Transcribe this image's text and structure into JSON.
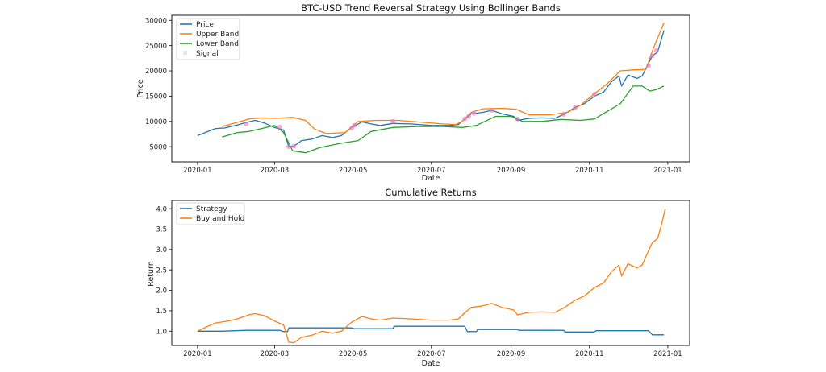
{
  "chart_data": [
    {
      "type": "line",
      "title": "BTC-USD Trend Reversal Strategy Using Bollinger Bands",
      "xlabel": "Date",
      "ylabel": "Price",
      "xlim": [
        "2019-12-12",
        "2021-01-18"
      ],
      "ylim": [
        2000,
        31000
      ],
      "yticks": [
        5000,
        10000,
        15000,
        20000,
        25000,
        30000
      ],
      "xticks": [
        "2020-01",
        "2020-03",
        "2020-05",
        "2020-07",
        "2020-09",
        "2020-11",
        "2021-01"
      ],
      "legend_position": "top-left",
      "grid": false,
      "series": [
        {
          "name": "Price",
          "color": "#1f77b4",
          "points": [
            [
              "2020-01-01",
              7200
            ],
            [
              "2020-01-08",
              7900
            ],
            [
              "2020-01-15",
              8600
            ],
            [
              "2020-01-22",
              8700
            ],
            [
              "2020-02-01",
              9300
            ],
            [
              "2020-02-08",
              9800
            ],
            [
              "2020-02-15",
              10200
            ],
            [
              "2020-02-22",
              9700
            ],
            [
              "2020-03-01",
              8800
            ],
            [
              "2020-03-08",
              8300
            ],
            [
              "2020-03-12",
              5000
            ],
            [
              "2020-03-16",
              5100
            ],
            [
              "2020-03-22",
              6200
            ],
            [
              "2020-03-30",
              6500
            ],
            [
              "2020-04-07",
              7200
            ],
            [
              "2020-04-15",
              6800
            ],
            [
              "2020-04-22",
              7200
            ],
            [
              "2020-04-30",
              8800
            ],
            [
              "2020-05-08",
              9900
            ],
            [
              "2020-05-15",
              9500
            ],
            [
              "2020-05-22",
              9200
            ],
            [
              "2020-06-01",
              9600
            ],
            [
              "2020-06-15",
              9500
            ],
            [
              "2020-07-01",
              9200
            ],
            [
              "2020-07-15",
              9200
            ],
            [
              "2020-07-22",
              9400
            ],
            [
              "2020-07-27",
              10500
            ],
            [
              "2020-08-01",
              11500
            ],
            [
              "2020-08-10",
              11800
            ],
            [
              "2020-08-17",
              12200
            ],
            [
              "2020-08-25",
              11500
            ],
            [
              "2020-09-03",
              11000
            ],
            [
              "2020-09-06",
              10200
            ],
            [
              "2020-09-15",
              10600
            ],
            [
              "2020-09-25",
              10700
            ],
            [
              "2020-10-05",
              10600
            ],
            [
              "2020-10-12",
              11400
            ],
            [
              "2020-10-21",
              12800
            ],
            [
              "2020-10-28",
              13500
            ],
            [
              "2020-11-05",
              15000
            ],
            [
              "2020-11-12",
              15800
            ],
            [
              "2020-11-18",
              17800
            ],
            [
              "2020-11-24",
              19000
            ],
            [
              "2020-11-26",
              17000
            ],
            [
              "2020-12-01",
              19200
            ],
            [
              "2020-12-08",
              18500
            ],
            [
              "2020-12-12",
              19000
            ],
            [
              "2020-12-16",
              21000
            ],
            [
              "2020-12-20",
              23000
            ],
            [
              "2020-12-24",
              23700
            ],
            [
              "2020-12-29",
              28000
            ]
          ]
        },
        {
          "name": "Upper Band",
          "color": "#ff7f0e",
          "points": [
            [
              "2020-01-20",
              9000
            ],
            [
              "2020-02-01",
              9800
            ],
            [
              "2020-02-10",
              10500
            ],
            [
              "2020-02-20",
              10700
            ],
            [
              "2020-03-01",
              10600
            ],
            [
              "2020-03-15",
              10800
            ],
            [
              "2020-03-25",
              10200
            ],
            [
              "2020-04-01",
              8500
            ],
            [
              "2020-04-10",
              7600
            ],
            [
              "2020-04-25",
              7800
            ],
            [
              "2020-05-05",
              10000
            ],
            [
              "2020-05-20",
              10200
            ],
            [
              "2020-06-05",
              10200
            ],
            [
              "2020-06-20",
              9900
            ],
            [
              "2020-07-10",
              9500
            ],
            [
              "2020-07-20",
              9400
            ],
            [
              "2020-07-25",
              10000
            ],
            [
              "2020-08-01",
              11800
            ],
            [
              "2020-08-10",
              12500
            ],
            [
              "2020-08-25",
              12600
            ],
            [
              "2020-09-05",
              12400
            ],
            [
              "2020-09-15",
              11300
            ],
            [
              "2020-10-01",
              11300
            ],
            [
              "2020-10-15",
              11800
            ],
            [
              "2020-10-25",
              13200
            ],
            [
              "2020-11-05",
              15500
            ],
            [
              "2020-11-15",
              17500
            ],
            [
              "2020-11-25",
              20000
            ],
            [
              "2020-12-05",
              20200
            ],
            [
              "2020-12-15",
              20300
            ],
            [
              "2020-12-20",
              24000
            ],
            [
              "2020-12-29",
              29500
            ]
          ]
        },
        {
          "name": "Lower Band",
          "color": "#2ca02c",
          "points": [
            [
              "2020-01-20",
              6900
            ],
            [
              "2020-02-01",
              7800
            ],
            [
              "2020-02-10",
              8000
            ],
            [
              "2020-02-20",
              8600
            ],
            [
              "2020-03-01",
              9200
            ],
            [
              "2020-03-08",
              7800
            ],
            [
              "2020-03-15",
              4200
            ],
            [
              "2020-03-25",
              3800
            ],
            [
              "2020-04-05",
              4800
            ],
            [
              "2020-04-20",
              5600
            ],
            [
              "2020-05-05",
              6200
            ],
            [
              "2020-05-15",
              8000
            ],
            [
              "2020-06-01",
              8800
            ],
            [
              "2020-06-20",
              9000
            ],
            [
              "2020-07-10",
              9000
            ],
            [
              "2020-07-25",
              8800
            ],
            [
              "2020-08-05",
              9200
            ],
            [
              "2020-08-20",
              11000
            ],
            [
              "2020-09-01",
              11000
            ],
            [
              "2020-09-10",
              10000
            ],
            [
              "2020-09-25",
              10000
            ],
            [
              "2020-10-10",
              10400
            ],
            [
              "2020-10-25",
              10200
            ],
            [
              "2020-11-05",
              10500
            ],
            [
              "2020-11-15",
              12000
            ],
            [
              "2020-11-25",
              13500
            ],
            [
              "2020-12-05",
              17000
            ],
            [
              "2020-12-12",
              17000
            ],
            [
              "2020-12-18",
              16000
            ],
            [
              "2020-12-23",
              16300
            ],
            [
              "2020-12-29",
              17000
            ]
          ]
        }
      ],
      "signals": {
        "name": "Signal",
        "color": "#e377c2",
        "points": [
          [
            "2020-02-08",
            9500
          ],
          [
            "2020-03-05",
            8900
          ],
          [
            "2020-03-12",
            5000
          ],
          [
            "2020-03-16",
            5100
          ],
          [
            "2020-04-30",
            8700
          ],
          [
            "2020-05-02",
            9200
          ],
          [
            "2020-06-01",
            10000
          ],
          [
            "2020-07-27",
            10500
          ],
          [
            "2020-07-30",
            11000
          ],
          [
            "2020-08-03",
            11600
          ],
          [
            "2020-08-17",
            12200
          ],
          [
            "2020-09-06",
            10500
          ],
          [
            "2020-10-12",
            11400
          ],
          [
            "2020-10-21",
            12800
          ],
          [
            "2020-11-05",
            15400
          ],
          [
            "2020-12-17",
            21000
          ],
          [
            "2020-12-20",
            23000
          ],
          [
            "2020-12-23",
            24000
          ]
        ]
      }
    },
    {
      "type": "line",
      "title": "Cumulative Returns",
      "xlabel": "Date",
      "ylabel": "Return",
      "xlim": [
        "2019-12-12",
        "2021-01-18"
      ],
      "ylim": [
        0.65,
        4.2
      ],
      "yticks": [
        1.0,
        1.5,
        2.0,
        2.5,
        3.0,
        3.5,
        4.0
      ],
      "xticks": [
        "2020-01",
        "2020-03",
        "2020-05",
        "2020-07",
        "2020-09",
        "2020-11",
        "2021-01"
      ],
      "legend_position": "top-left",
      "grid": false,
      "series": [
        {
          "name": "Strategy",
          "color": "#1f77b4",
          "points": [
            [
              "2020-01-01",
              1.0
            ],
            [
              "2020-01-20",
              1.0
            ],
            [
              "2020-02-08",
              1.02
            ],
            [
              "2020-03-05",
              1.02
            ],
            [
              "2020-03-08",
              0.99
            ],
            [
              "2020-03-11",
              0.99
            ],
            [
              "2020-03-12",
              1.08
            ],
            [
              "2020-04-30",
              1.08
            ],
            [
              "2020-05-02",
              1.06
            ],
            [
              "2020-06-01",
              1.06
            ],
            [
              "2020-06-02",
              1.12
            ],
            [
              "2020-07-27",
              1.12
            ],
            [
              "2020-07-29",
              0.99
            ],
            [
              "2020-08-05",
              0.99
            ],
            [
              "2020-08-06",
              1.04
            ],
            [
              "2020-09-06",
              1.04
            ],
            [
              "2020-09-07",
              1.02
            ],
            [
              "2020-10-12",
              1.02
            ],
            [
              "2020-10-13",
              0.98
            ],
            [
              "2020-11-05",
              0.98
            ],
            [
              "2020-11-06",
              1.01
            ],
            [
              "2020-12-17",
              1.01
            ],
            [
              "2020-12-20",
              0.91
            ],
            [
              "2020-12-29",
              0.91
            ]
          ]
        },
        {
          "name": "Buy and Hold",
          "color": "#ff7f0e",
          "points": [
            [
              "2020-01-01",
              1.0
            ],
            [
              "2020-01-05",
              1.06
            ],
            [
              "2020-01-15",
              1.2
            ],
            [
              "2020-01-25",
              1.25
            ],
            [
              "2020-02-01",
              1.3
            ],
            [
              "2020-02-10",
              1.4
            ],
            [
              "2020-02-15",
              1.43
            ],
            [
              "2020-02-22",
              1.38
            ],
            [
              "2020-03-01",
              1.25
            ],
            [
              "2020-03-08",
              1.15
            ],
            [
              "2020-03-12",
              0.73
            ],
            [
              "2020-03-16",
              0.72
            ],
            [
              "2020-03-22",
              0.85
            ],
            [
              "2020-03-30",
              0.9
            ],
            [
              "2020-04-07",
              1.0
            ],
            [
              "2020-04-15",
              0.95
            ],
            [
              "2020-04-22",
              1.0
            ],
            [
              "2020-04-30",
              1.22
            ],
            [
              "2020-05-08",
              1.36
            ],
            [
              "2020-05-15",
              1.3
            ],
            [
              "2020-05-22",
              1.27
            ],
            [
              "2020-06-01",
              1.32
            ],
            [
              "2020-06-15",
              1.3
            ],
            [
              "2020-07-01",
              1.27
            ],
            [
              "2020-07-15",
              1.27
            ],
            [
              "2020-07-22",
              1.3
            ],
            [
              "2020-07-27",
              1.45
            ],
            [
              "2020-08-01",
              1.58
            ],
            [
              "2020-08-10",
              1.62
            ],
            [
              "2020-08-17",
              1.68
            ],
            [
              "2020-08-25",
              1.58
            ],
            [
              "2020-09-03",
              1.52
            ],
            [
              "2020-09-06",
              1.4
            ],
            [
              "2020-09-15",
              1.46
            ],
            [
              "2020-09-25",
              1.47
            ],
            [
              "2020-10-05",
              1.46
            ],
            [
              "2020-10-12",
              1.57
            ],
            [
              "2020-10-21",
              1.76
            ],
            [
              "2020-10-28",
              1.86
            ],
            [
              "2020-11-05",
              2.07
            ],
            [
              "2020-11-12",
              2.18
            ],
            [
              "2020-11-18",
              2.45
            ],
            [
              "2020-11-24",
              2.62
            ],
            [
              "2020-11-26",
              2.35
            ],
            [
              "2020-12-01",
              2.65
            ],
            [
              "2020-12-08",
              2.55
            ],
            [
              "2020-12-12",
              2.62
            ],
            [
              "2020-12-16",
              2.9
            ],
            [
              "2020-12-20",
              3.17
            ],
            [
              "2020-12-24",
              3.27
            ],
            [
              "2020-12-27",
              3.6
            ],
            [
              "2020-12-30",
              4.0
            ]
          ]
        }
      ]
    }
  ]
}
